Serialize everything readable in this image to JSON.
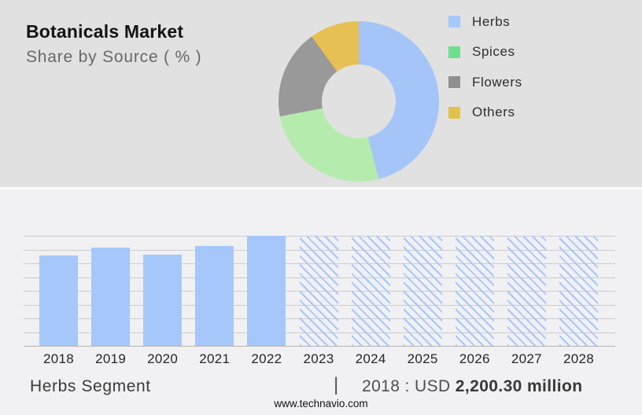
{
  "header": {
    "title": "Botanicals Market",
    "subtitle": "Share by Source ( % )"
  },
  "footer": {
    "segment": "Herbs Segment",
    "divider": "|",
    "value_prefix": "2018 : USD ",
    "value_bold": "2,200.30 million",
    "website": "www.technavio.com"
  },
  "colors": {
    "top_bg": "#e1e1e1",
    "bottom_bg": "#f1f1f3",
    "accent_blue": "#a6c7fa",
    "gridline": "#cbcbcb"
  },
  "chart_data": [
    {
      "type": "pie",
      "donut": true,
      "title": "Botanicals Market",
      "subtitle": "Share by Source ( % )",
      "labels": [
        "Herbs",
        "Spices",
        "Flowers",
        "Others"
      ],
      "values": [
        46,
        26,
        18,
        10
      ],
      "unit": "%",
      "slice_colors": [
        "#a5c4f8",
        "#b5ecae",
        "#999999",
        "#e6c052"
      ],
      "legend_swatch_colors": [
        "#a6c8fa",
        "#6ede8e",
        "#8f8f8f",
        "#e2c24a"
      ],
      "legend_position": "right",
      "start_angle_deg": 0,
      "note": "slice percentages estimated from arc angles; no numeric labels shown in image"
    },
    {
      "type": "bar",
      "categories": [
        "2018",
        "2019",
        "2020",
        "2021",
        "2022",
        "2023",
        "2024",
        "2025",
        "2026",
        "2027",
        "2028"
      ],
      "values_relative": [
        0.82,
        0.89,
        0.83,
        0.91,
        1.0,
        1.0,
        1.0,
        1.0,
        1.0,
        1.0,
        1.0
      ],
      "bar_styles": [
        "solid",
        "solid",
        "solid",
        "solid",
        "solid",
        "hatched",
        "hatched",
        "hatched",
        "hatched",
        "hatched",
        "hatched"
      ],
      "bar_color": "#a6c7fa",
      "gridline_count": 9,
      "xlabel": "",
      "ylabel": "",
      "y_axis_labels_shown": false,
      "annotation_segment": "Herbs Segment",
      "annotation_value": "2018 : USD 2,200.30 million",
      "note": "bars 2023-2028 are forecast (hatched), full plot height; heights relative to 2022 peak"
    }
  ]
}
